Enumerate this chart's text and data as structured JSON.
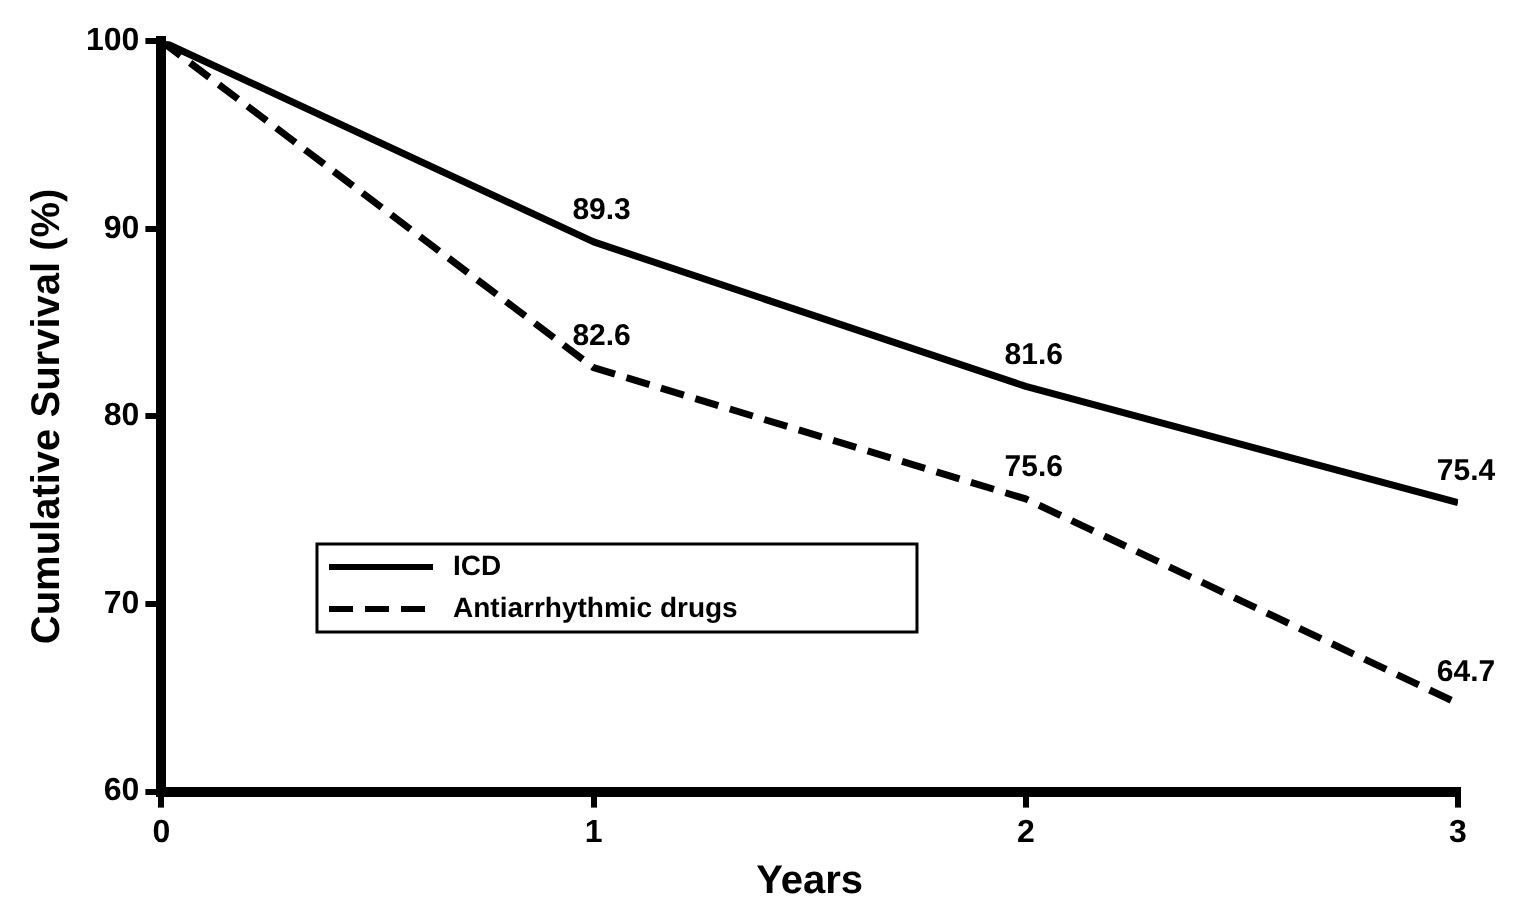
{
  "chart_data": {
    "type": "line",
    "xlabel": "Years",
    "ylabel": "Cumulative Survival (%)",
    "x": [
      0,
      1,
      2,
      3
    ],
    "series": [
      {
        "name": "ICD",
        "color": "#000000",
        "line_style": "solid",
        "values": [
          100,
          89.3,
          81.6,
          75.4
        ],
        "value_labels": [
          null,
          "89.3",
          "81.6",
          "75.4"
        ]
      },
      {
        "name": "Antiarrhythmic drugs",
        "color": "#000000",
        "line_style": "dashed",
        "values": [
          100,
          82.6,
          75.6,
          64.7
        ],
        "value_labels": [
          null,
          "82.6",
          "75.6",
          "64.7"
        ]
      }
    ],
    "xlim": [
      0,
      3
    ],
    "xticks": [
      0,
      1,
      2,
      3
    ],
    "ylim": [
      60,
      100
    ],
    "yticks": [
      60,
      70,
      80,
      90,
      100
    ],
    "grid": false,
    "legend": "bottom left",
    "marker": "none"
  }
}
